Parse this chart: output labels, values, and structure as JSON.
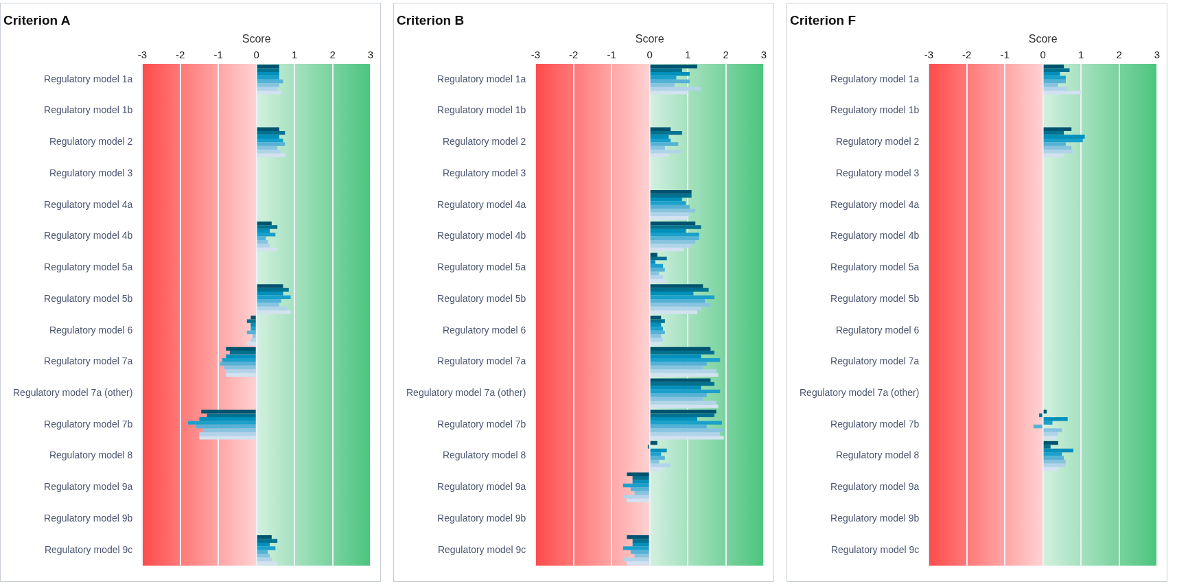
{
  "chart_data": [
    {
      "type": "bar",
      "orientation": "horizontal",
      "title": "Criterion A",
      "xlabel": "Score",
      "categories": [
        "Regulatory model 1a",
        "Regulatory model 1b",
        "Regulatory model 2",
        "Regulatory model 3",
        "Regulatory model 4a",
        "Regulatory model 4b",
        "Regulatory model 5a",
        "Regulatory model 5b",
        "Regulatory model 6",
        "Regulatory model 7a",
        "Regulatory model 7a (other)",
        "Regulatory model 7b",
        "Regulatory model 8",
        "Regulatory model 9a",
        "Regulatory model 9b",
        "Regulatory model 9c"
      ],
      "series": [
        {
          "color": "#00536f",
          "values": [
            0.6,
            null,
            0.6,
            null,
            null,
            0.4,
            null,
            0.7,
            -0.15,
            -0.8,
            null,
            -1.45,
            null,
            null,
            null,
            0.4
          ]
        },
        {
          "color": "#00718f",
          "values": [
            0.6,
            null,
            0.75,
            null,
            null,
            0.55,
            null,
            0.85,
            -0.25,
            -0.7,
            null,
            -1.3,
            null,
            null,
            null,
            0.55
          ]
        },
        {
          "color": "#0090bb",
          "values": [
            0.6,
            null,
            0.6,
            null,
            null,
            0.35,
            null,
            0.7,
            -0.15,
            -0.8,
            null,
            -1.5,
            null,
            null,
            null,
            0.35
          ]
        },
        {
          "color": "#1ba0cc",
          "values": [
            0.6,
            null,
            0.7,
            null,
            null,
            0.5,
            null,
            0.9,
            -0.15,
            -0.9,
            null,
            -1.8,
            null,
            null,
            null,
            0.5
          ]
        },
        {
          "color": "#55b2d6",
          "values": [
            0.7,
            null,
            0.75,
            null,
            null,
            0.25,
            null,
            0.65,
            -0.25,
            -0.95,
            null,
            -1.6,
            null,
            null,
            null,
            0.3
          ]
        },
        {
          "color": "#88c4e0",
          "values": [
            0.6,
            null,
            0.55,
            null,
            null,
            0.3,
            null,
            0.6,
            -0.1,
            -0.85,
            null,
            -1.4,
            null,
            null,
            null,
            0.35
          ]
        },
        {
          "color": "#b2d4ea",
          "values": [
            0.55,
            null,
            0.65,
            null,
            null,
            0.35,
            null,
            0.8,
            -0.15,
            -0.8,
            null,
            -1.5,
            null,
            null,
            null,
            0.4
          ]
        },
        {
          "color": "#d2e2f0",
          "values": [
            0.65,
            null,
            0.75,
            null,
            null,
            0.55,
            null,
            0.9,
            -0.25,
            -0.8,
            null,
            -1.5,
            null,
            null,
            null,
            0.55
          ]
        }
      ],
      "xlim": [
        -3,
        3
      ],
      "xticks": [
        -3,
        -2,
        -1,
        0,
        1,
        2,
        3
      ],
      "grid": "x",
      "bands": [
        {
          "axis": "x",
          "from": -3,
          "to": 0,
          "label": null,
          "color": "#ff4b4b"
        },
        {
          "axis": "x",
          "from": 0,
          "to": 3,
          "label": null,
          "color": "#4cc47e"
        }
      ]
    },
    {
      "type": "bar",
      "orientation": "horizontal",
      "title": "Criterion B",
      "xlabel": "Score",
      "categories": [
        "Regulatory model 1a",
        "Regulatory model 1b",
        "Regulatory model 2",
        "Regulatory model 3",
        "Regulatory model 4a",
        "Regulatory model 4b",
        "Regulatory model 5a",
        "Regulatory model 5b",
        "Regulatory model 6",
        "Regulatory model 7a",
        "Regulatory model 7a (other)",
        "Regulatory model 7b",
        "Regulatory model 8",
        "Regulatory model 9a",
        "Regulatory model 9b",
        "Regulatory model 9c"
      ],
      "series": [
        {
          "color": "#00536f",
          "values": [
            1.25,
            null,
            0.55,
            null,
            1.1,
            1.2,
            0.2,
            1.4,
            0.3,
            1.6,
            1.6,
            1.75,
            0.2,
            -0.6,
            null,
            -0.6
          ]
        },
        {
          "color": "#00718f",
          "values": [
            0.85,
            null,
            0.85,
            null,
            1.1,
            1.35,
            0.45,
            1.55,
            0.4,
            1.7,
            1.7,
            1.7,
            -0.05,
            -0.45,
            null,
            -0.45
          ]
        },
        {
          "color": "#0090bb",
          "values": [
            1.05,
            null,
            0.5,
            null,
            0.85,
            0.95,
            0.15,
            1.15,
            0.3,
            1.35,
            1.35,
            1.25,
            0.45,
            -0.45,
            null,
            -0.45
          ]
        },
        {
          "color": "#1ba0cc",
          "values": [
            0.7,
            null,
            0.55,
            null,
            0.95,
            1.3,
            0.35,
            1.7,
            0.35,
            1.85,
            1.85,
            1.9,
            0.3,
            -0.7,
            null,
            -0.7
          ]
        },
        {
          "color": "#55b2d6",
          "values": [
            1.05,
            null,
            0.75,
            null,
            1.05,
            1.3,
            0.4,
            1.45,
            0.4,
            1.5,
            1.5,
            1.5,
            0.4,
            -0.5,
            null,
            -0.5
          ]
        },
        {
          "color": "#88c4e0",
          "values": [
            0.65,
            null,
            0.4,
            null,
            1.2,
            1.2,
            0.25,
            1.6,
            0.3,
            1.4,
            1.4,
            1.95,
            0.25,
            -0.4,
            null,
            -0.4
          ]
        },
        {
          "color": "#b2d4ea",
          "values": [
            1.35,
            null,
            0.85,
            null,
            1.05,
            1.1,
            0.35,
            1.35,
            0.35,
            1.75,
            1.75,
            1.85,
            0.55,
            -0.7,
            null,
            -0.7
          ]
        },
        {
          "color": "#d2e2f0",
          "values": [
            1.0,
            null,
            0.5,
            null,
            1.0,
            0.9,
            0.4,
            1.25,
            0.25,
            1.8,
            1.8,
            1.95,
            0.35,
            -0.6,
            null,
            -0.6
          ]
        }
      ],
      "xlim": [
        -3,
        3
      ],
      "xticks": [
        -3,
        -2,
        -1,
        0,
        1,
        2,
        3
      ],
      "grid": "x",
      "bands": [
        {
          "axis": "x",
          "from": -3,
          "to": 0,
          "label": null,
          "color": "#ff4b4b"
        },
        {
          "axis": "x",
          "from": 0,
          "to": 3,
          "label": null,
          "color": "#4cc47e"
        }
      ]
    },
    {
      "type": "bar",
      "orientation": "horizontal",
      "title": "Criterion F",
      "xlabel": "Score",
      "categories": [
        "Regulatory model 1a",
        "Regulatory model 1b",
        "Regulatory model 2",
        "Regulatory model 3",
        "Regulatory model 4a",
        "Regulatory model 4b",
        "Regulatory model 5a",
        "Regulatory model 5b",
        "Regulatory model 6",
        "Regulatory model 7a",
        "Regulatory model 7a (other)",
        "Regulatory model 7b",
        "Regulatory model 8",
        "Regulatory model 9a",
        "Regulatory model 9b",
        "Regulatory model 9c"
      ],
      "series": [
        {
          "color": "#00536f",
          "values": [
            0.55,
            null,
            0.75,
            null,
            null,
            null,
            null,
            null,
            null,
            null,
            null,
            0.1,
            0.4,
            null,
            null,
            null
          ]
        },
        {
          "color": "#00718f",
          "values": [
            0.7,
            null,
            0.55,
            null,
            null,
            null,
            null,
            null,
            null,
            null,
            null,
            -0.1,
            0.2,
            null,
            null,
            null
          ]
        },
        {
          "color": "#0090bb",
          "values": [
            0.45,
            null,
            1.1,
            null,
            null,
            null,
            null,
            null,
            null,
            null,
            null,
            0.65,
            0.8,
            null,
            null,
            null
          ]
        },
        {
          "color": "#1ba0cc",
          "values": [
            0.6,
            null,
            1.05,
            null,
            null,
            null,
            null,
            null,
            null,
            null,
            null,
            0.25,
            0.5,
            null,
            null,
            null
          ]
        },
        {
          "color": "#55b2d6",
          "values": [
            0.6,
            null,
            0.6,
            null,
            null,
            null,
            null,
            null,
            null,
            null,
            null,
            -0.25,
            0.55,
            null,
            null,
            null
          ]
        },
        {
          "color": "#88c4e0",
          "values": [
            0.4,
            null,
            0.75,
            null,
            null,
            null,
            null,
            null,
            null,
            null,
            null,
            0.5,
            0.6,
            null,
            null,
            null
          ]
        },
        {
          "color": "#b2d4ea",
          "values": [
            0.65,
            null,
            0.8,
            null,
            null,
            null,
            null,
            null,
            null,
            null,
            null,
            0.4,
            0.6,
            null,
            null,
            null
          ]
        },
        {
          "color": "#d2e2f0",
          "values": [
            1.0,
            null,
            0.55,
            null,
            null,
            null,
            null,
            null,
            null,
            null,
            null,
            0.35,
            0.4,
            null,
            null,
            null
          ]
        }
      ],
      "xlim": [
        -3,
        3
      ],
      "xticks": [
        -3,
        -2,
        -1,
        0,
        1,
        2,
        3
      ],
      "grid": "x",
      "bands": [
        {
          "axis": "x",
          "from": -3,
          "to": 0,
          "label": null,
          "color": "#ff4b4b"
        },
        {
          "axis": "x",
          "from": 0,
          "to": 3,
          "label": null,
          "color": "#4cc47e"
        }
      ]
    }
  ]
}
